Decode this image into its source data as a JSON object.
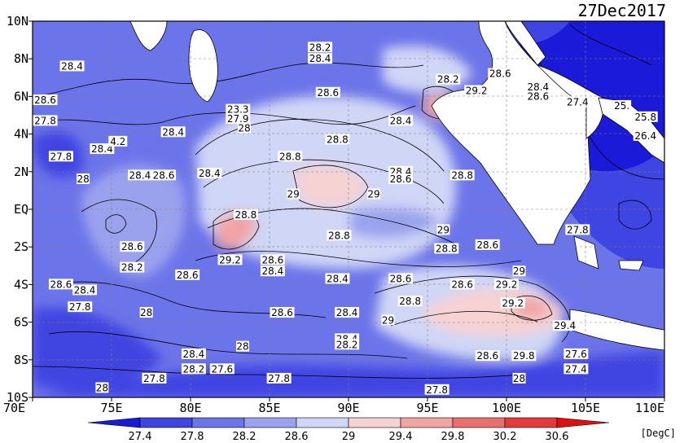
{
  "date": "27Dec2017",
  "unit_label": "[DegC]",
  "colors": {
    "deep": "#1010d8",
    "mid": "#5a5ee8",
    "light": "#9aa2ee",
    "pale": "#cfd6f6",
    "warm1": "#f6d2d2",
    "warm2": "#f0a4a4",
    "land": "#ffffff",
    "contour": "#000000"
  },
  "lon_ticks": [
    "70E",
    "75E",
    "80E",
    "85E",
    "90E",
    "95E",
    "100E",
    "105E",
    "110E"
  ],
  "lat_ticks": [
    "10N",
    "8N",
    "6N",
    "4N",
    "2N",
    "EQ",
    "2S",
    "4S",
    "6S",
    "8S",
    "10S"
  ],
  "colorbar": {
    "levels": [
      "27.4",
      "27.8",
      "28.2",
      "28.6",
      "29",
      "29.4",
      "29.8",
      "30.2",
      "30.6"
    ],
    "colors": [
      "#1a1ad8",
      "#3f45e2",
      "#6c74ea",
      "#9aa2ee",
      "#cfd6f6",
      "#f6d2d2",
      "#f0a4a4",
      "#ea7070",
      "#e43a3a",
      "#e01010"
    ]
  },
  "contour_labels": [
    {
      "t": "28.2",
      "lon": 88.2,
      "lat": 8.6
    },
    {
      "t": "28.4",
      "lon": 88.2,
      "lat": 8.0
    },
    {
      "t": "28.4",
      "lon": 72.5,
      "lat": 7.6
    },
    {
      "t": "28.6",
      "lon": 70.8,
      "lat": 5.8
    },
    {
      "t": "28.6",
      "lon": 88.7,
      "lat": 6.2
    },
    {
      "t": "28.2",
      "lon": 96.3,
      "lat": 6.9
    },
    {
      "t": "29.2",
      "lon": 98.1,
      "lat": 6.3
    },
    {
      "t": "28.6",
      "lon": 99.6,
      "lat": 7.2
    },
    {
      "t": "28.4",
      "lon": 102.0,
      "lat": 6.5
    },
    {
      "t": "28.6",
      "lon": 102.0,
      "lat": 6.0
    },
    {
      "t": "27.4",
      "lon": 104.5,
      "lat": 5.7
    },
    {
      "t": "25.",
      "lon": 107.3,
      "lat": 5.5
    },
    {
      "t": "25.8",
      "lon": 108.8,
      "lat": 4.9
    },
    {
      "t": "26.4",
      "lon": 108.8,
      "lat": 3.9
    },
    {
      "t": "23.3",
      "lon": 83.0,
      "lat": 5.3
    },
    {
      "t": "27.9",
      "lon": 83.0,
      "lat": 4.8
    },
    {
      "t": "28",
      "lon": 83.4,
      "lat": 4.3
    },
    {
      "t": "27.8",
      "lon": 70.8,
      "lat": 4.7
    },
    {
      "t": "28.4",
      "lon": 93.3,
      "lat": 4.7
    },
    {
      "t": "28.8",
      "lon": 89.3,
      "lat": 3.7
    },
    {
      "t": "28.4",
      "lon": 78.9,
      "lat": 4.1
    },
    {
      "t": "28.4",
      "lon": 74.4,
      "lat": 3.2
    },
    {
      "t": "4.2",
      "lon": 75.4,
      "lat": 3.6
    },
    {
      "t": "27.8",
      "lon": 71.8,
      "lat": 2.8
    },
    {
      "t": "28.8",
      "lon": 86.3,
      "lat": 2.8
    },
    {
      "t": "28",
      "lon": 73.2,
      "lat": 1.6
    },
    {
      "t": "28.4",
      "lon": 76.8,
      "lat": 1.8
    },
    {
      "t": "28.6",
      "lon": 78.3,
      "lat": 1.8
    },
    {
      "t": "28.4",
      "lon": 81.2,
      "lat": 1.9
    },
    {
      "t": "28.4",
      "lon": 93.3,
      "lat": 2.0
    },
    {
      "t": "28.6",
      "lon": 93.3,
      "lat": 1.6
    },
    {
      "t": "28.8",
      "lon": 97.2,
      "lat": 1.8
    },
    {
      "t": "29",
      "lon": 86.5,
      "lat": 0.8
    },
    {
      "t": "29",
      "lon": 91.6,
      "lat": 0.8
    },
    {
      "t": "28.8",
      "lon": 83.5,
      "lat": -0.3
    },
    {
      "t": "29",
      "lon": 96.0,
      "lat": -1.1
    },
    {
      "t": "28.8",
      "lon": 89.4,
      "lat": -1.4
    },
    {
      "t": "27.8",
      "lon": 104.5,
      "lat": -1.1
    },
    {
      "t": "28.6",
      "lon": 76.3,
      "lat": -2.0
    },
    {
      "t": "28.8",
      "lon": 96.2,
      "lat": -2.1
    },
    {
      "t": "28.6",
      "lon": 98.8,
      "lat": -1.9
    },
    {
      "t": "29.2",
      "lon": 82.5,
      "lat": -2.7
    },
    {
      "t": "28.6",
      "lon": 85.2,
      "lat": -2.7
    },
    {
      "t": "28.2",
      "lon": 76.3,
      "lat": -3.1
    },
    {
      "t": "28.6",
      "lon": 79.8,
      "lat": -3.5
    },
    {
      "t": "28.4",
      "lon": 85.2,
      "lat": -3.3
    },
    {
      "t": "28.4",
      "lon": 89.3,
      "lat": -3.7
    },
    {
      "t": "28.6",
      "lon": 93.3,
      "lat": -3.7
    },
    {
      "t": "29",
      "lon": 100.8,
      "lat": -3.3
    },
    {
      "t": "28.6",
      "lon": 71.8,
      "lat": -4.0
    },
    {
      "t": "28.4",
      "lon": 73.3,
      "lat": -4.3
    },
    {
      "t": "28.6",
      "lon": 97.2,
      "lat": -4.0
    },
    {
      "t": "29.2",
      "lon": 100.0,
      "lat": -4.0
    },
    {
      "t": "28.8",
      "lon": 93.9,
      "lat": -4.9
    },
    {
      "t": "29.2",
      "lon": 100.4,
      "lat": -5.0
    },
    {
      "t": "27.8",
      "lon": 73.0,
      "lat": -5.2
    },
    {
      "t": "28",
      "lon": 77.2,
      "lat": -5.5
    },
    {
      "t": "28.6",
      "lon": 85.8,
      "lat": -5.5
    },
    {
      "t": "28.4",
      "lon": 89.9,
      "lat": -5.5
    },
    {
      "t": "29",
      "lon": 92.5,
      "lat": -5.9
    },
    {
      "t": "29.4",
      "lon": 103.7,
      "lat": -6.2
    },
    {
      "t": "28.4",
      "lon": 89.9,
      "lat": -6.9
    },
    {
      "t": "28.2",
      "lon": 89.9,
      "lat": -7.2
    },
    {
      "t": "28",
      "lon": 83.3,
      "lat": -7.3
    },
    {
      "t": "28.4",
      "lon": 80.2,
      "lat": -7.7
    },
    {
      "t": "28.6",
      "lon": 98.8,
      "lat": -7.8
    },
    {
      "t": "29.8",
      "lon": 101.1,
      "lat": -7.8
    },
    {
      "t": "27.6",
      "lon": 104.4,
      "lat": -7.7
    },
    {
      "t": "28.2",
      "lon": 80.2,
      "lat": -8.5
    },
    {
      "t": "27.6",
      "lon": 82.0,
      "lat": -8.5
    },
    {
      "t": "27.4",
      "lon": 104.4,
      "lat": -8.5
    },
    {
      "t": "27.8",
      "lon": 77.7,
      "lat": -9.0
    },
    {
      "t": "27.8",
      "lon": 85.6,
      "lat": -9.0
    },
    {
      "t": "28",
      "lon": 100.8,
      "lat": -9.0
    },
    {
      "t": "28",
      "lon": 74.4,
      "lat": -9.5
    },
    {
      "t": "27.8",
      "lon": 95.6,
      "lat": -9.6
    }
  ]
}
